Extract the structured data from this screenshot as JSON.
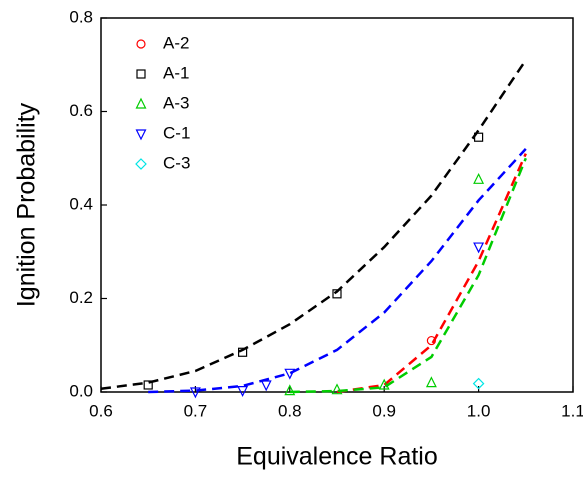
{
  "chart_data": {
    "type": "scatter",
    "x_label": "Equivalence Ratio",
    "y_label": "Ignition Probability",
    "xlim": [
      0.6,
      1.1
    ],
    "ylim": [
      0,
      0.8
    ],
    "xticks": [
      0.6,
      0.7,
      0.8,
      0.9,
      {
        "value": 1,
        "label": "1.0"
      },
      1.1
    ],
    "yticks": [
      {
        "value": 0,
        "label": "0.0"
      },
      0.2,
      0.4,
      0.6,
      0.8
    ],
    "legend": "upper left",
    "series": [
      {
        "name": "A-2",
        "color": "#ff0000",
        "marker": "circle",
        "x": [
          0.95
        ],
        "values": [
          0.11
        ]
      },
      {
        "name": "A-1",
        "color": "#000000",
        "marker": "square",
        "x": [
          0.65,
          0.75,
          0.85,
          1.0
        ],
        "values": [
          0.015,
          0.085,
          0.21,
          0.545
        ]
      },
      {
        "name": "A-3",
        "color": "#00cc00",
        "marker": "triangle-up",
        "x": [
          0.8,
          0.85,
          0.9,
          0.95,
          1.0
        ],
        "values": [
          0.003,
          0.005,
          0.015,
          0.02,
          0.455
        ]
      },
      {
        "name": "C-1",
        "color": "#0000ff",
        "marker": "triangle-down",
        "x": [
          0.7,
          0.75,
          0.775,
          0.8,
          1.0
        ],
        "values": [
          0,
          0.003,
          0.015,
          0.04,
          0.31
        ]
      },
      {
        "name": "C-3",
        "color": "#00e5e5",
        "marker": "diamond",
        "x": [
          1.0
        ],
        "values": [
          0.018
        ]
      }
    ],
    "fit_lines": [
      {
        "color": "#000000",
        "x": [
          0.6,
          0.65,
          0.7,
          0.75,
          0.8,
          0.85,
          0.9,
          0.95,
          1.0,
          1.05
        ],
        "values": [
          0.007,
          0.02,
          0.045,
          0.09,
          0.145,
          0.215,
          0.31,
          0.42,
          0.56,
          0.71
        ]
      },
      {
        "color": "#0000ff",
        "x": [
          0.65,
          0.7,
          0.75,
          0.8,
          0.85,
          0.9,
          0.95,
          1.0,
          1.05
        ],
        "values": [
          0,
          0.003,
          0.013,
          0.04,
          0.09,
          0.17,
          0.28,
          0.41,
          0.52
        ]
      },
      {
        "color": "#ff0000",
        "x": [
          0.85,
          0.9,
          0.95,
          1.0,
          1.05
        ],
        "values": [
          0,
          0.015,
          0.1,
          0.28,
          0.51
        ]
      },
      {
        "color": "#00cc00",
        "x": [
          0.8,
          0.85,
          0.9,
          0.95,
          1.0,
          1.05
        ],
        "values": [
          0,
          0.002,
          0.01,
          0.075,
          0.25,
          0.5
        ]
      }
    ]
  }
}
